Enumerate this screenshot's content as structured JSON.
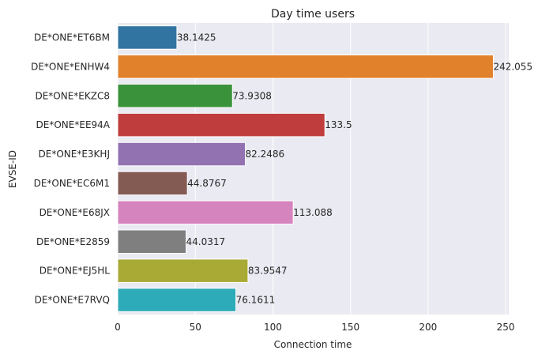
{
  "chart_data": {
    "type": "bar",
    "orientation": "horizontal",
    "title": "Day time users",
    "xlabel": "Connection time",
    "ylabel": "EVSE-ID",
    "xlim": [
      0,
      252
    ],
    "xticks": [
      0,
      50,
      100,
      150,
      200,
      250
    ],
    "grid": true,
    "background": "#eaeaf2",
    "categories": [
      "DE*ONE*ET6BM",
      "DE*ONE*ENHW4",
      "DE*ONE*EKZC8",
      "DE*ONE*EE94A",
      "DE*ONE*E3KHJ",
      "DE*ONE*EC6M1",
      "DE*ONE*E68JX",
      "DE*ONE*E2859",
      "DE*ONE*EJ5HL",
      "DE*ONE*E7RVQ"
    ],
    "values": [
      38.1425,
      242.055,
      73.9308,
      133.5,
      82.2486,
      44.8767,
      113.088,
      44.0317,
      83.9547,
      76.1611
    ],
    "value_labels": [
      "38.1425",
      "242.055",
      "73.9308",
      "133.5",
      "82.2486",
      "44.8767",
      "113.088",
      "44.0317",
      "83.9547",
      "76.1611"
    ],
    "colors": [
      "#3274a1",
      "#e1812c",
      "#3a923a",
      "#c03d3e",
      "#9372b2",
      "#845b53",
      "#d684bd",
      "#7f7f7f",
      "#a9aa35",
      "#2eabb8"
    ]
  }
}
